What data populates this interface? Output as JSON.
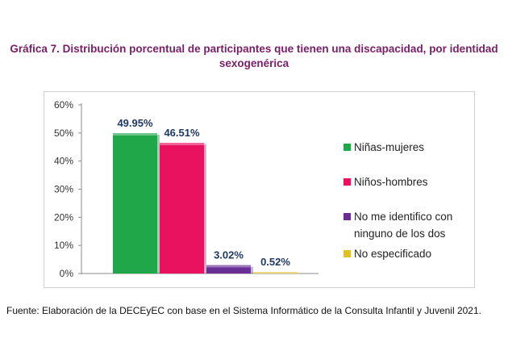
{
  "title": {
    "line1": "Gráfica 7. Distribución porcentual de participantes que tienen una discapacidad, por identidad",
    "line2": "sexogenérica"
  },
  "source": "Fuente: Elaboración de la DECEyEC con base en el Sistema Informático de la Consulta Infantil y Juvenil 2021.",
  "chart_data": {
    "type": "bar",
    "categories": [
      "Niñas-mujeres",
      "Niños-hombres",
      "No me identifico con ninguno de los dos",
      "No especificado"
    ],
    "values": [
      49.95,
      46.51,
      3.02,
      0.52
    ],
    "data_labels": [
      "49.95%",
      "46.51%",
      "3.02%",
      "0.52%"
    ],
    "colors": [
      "#1fa74a",
      "#e8125f",
      "#6a2f97",
      "#e0c02a"
    ],
    "ylim": [
      0,
      60
    ],
    "yticks": [
      "0%",
      "10%",
      "20%",
      "30%",
      "40%",
      "50%",
      "60%"
    ],
    "grid": false,
    "legend_position": "right",
    "legend": [
      {
        "line1": "Niñas-mujeres",
        "line2": ""
      },
      {
        "line1": "Niños-hombres",
        "line2": ""
      },
      {
        "line1": "No me identifico con",
        "line2": "ninguno de los dos"
      },
      {
        "line1": "No especificado",
        "line2": ""
      }
    ]
  }
}
